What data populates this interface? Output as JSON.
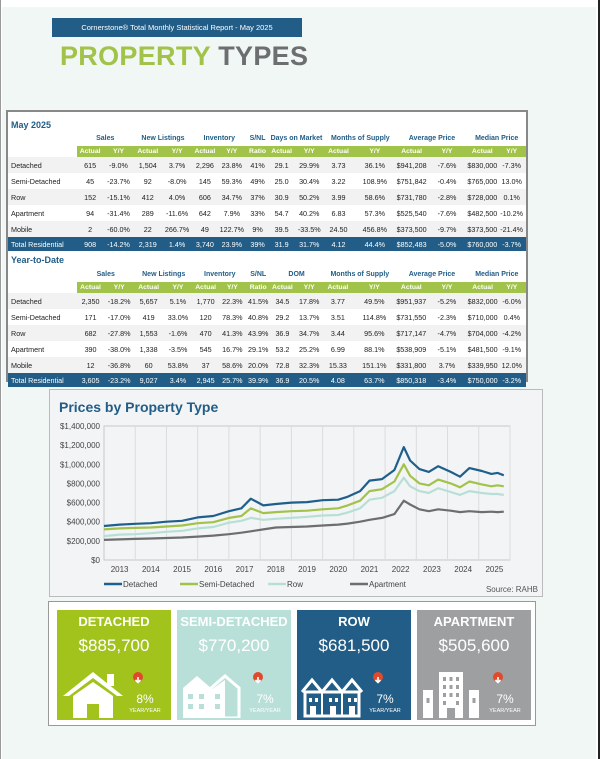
{
  "header": {
    "banner": "Cornerstone® Total Monthly Statistical Report - May 2025",
    "title_part1": "PROPERTY",
    "title_part2": "TYPES"
  },
  "tables": {
    "group_headers": [
      "Sales",
      "New Listings",
      "Inventory",
      "S/NL",
      "Months of Supply",
      "Average Price",
      "Median Price"
    ],
    "sub_headers": [
      "Actual",
      "Y/Y",
      "Actual",
      "Y/Y",
      "Actual",
      "Y/Y",
      "Ratio",
      "Actual",
      "Y/Y",
      "Actual",
      "Y/Y",
      "Actual",
      "Y/Y",
      "Actual",
      "Y/Y"
    ],
    "monthly": {
      "title": "May 2025",
      "dom_header": "Days on Market",
      "rows": [
        {
          "label": "Detached",
          "values": [
            "615",
            "-9.0%",
            "1,504",
            "3.7%",
            "2,296",
            "23.8%",
            "41%",
            "29.1",
            "29.9%",
            "3.73",
            "36.1%",
            "$941,208",
            "-7.6%",
            "$830,000",
            "-7.3%"
          ]
        },
        {
          "label": "Semi-Detached",
          "values": [
            "45",
            "-23.7%",
            "92",
            "-8.0%",
            "145",
            "59.3%",
            "49%",
            "25.0",
            "30.4%",
            "3.22",
            "108.9%",
            "$751,842",
            "-0.4%",
            "$765,000",
            "13.0%"
          ]
        },
        {
          "label": "Row",
          "values": [
            "152",
            "-15.1%",
            "412",
            "4.0%",
            "606",
            "34.7%",
            "37%",
            "30.9",
            "50.2%",
            "3.99",
            "58.6%",
            "$731,780",
            "-2.8%",
            "$728,000",
            "0.1%"
          ]
        },
        {
          "label": "Apartment",
          "values": [
            "94",
            "-31.4%",
            "289",
            "-11.6%",
            "642",
            "7.9%",
            "33%",
            "54.7",
            "40.2%",
            "6.83",
            "57.3%",
            "$525,540",
            "-7.6%",
            "$482,500",
            "-10.2%"
          ]
        },
        {
          "label": "Mobile",
          "values": [
            "2",
            "-60.0%",
            "22",
            "266.7%",
            "49",
            "122.7%",
            "9%",
            "39.5",
            "-33.5%",
            "24.50",
            "456.8%",
            "$373,500",
            "-9.7%",
            "$373,500",
            "-21.4%"
          ]
        }
      ],
      "total": {
        "label": "Total Residential",
        "values": [
          "908",
          "-14.2%",
          "2,319",
          "1.4%",
          "3,740",
          "23.9%",
          "39%",
          "31.9",
          "31.7%",
          "4.12",
          "44.4%",
          "$852,483",
          "-5.0%",
          "$760,000",
          "-3.7%"
        ]
      }
    },
    "ytd": {
      "title": "Year-to-Date",
      "dom_header": "DOM",
      "rows": [
        {
          "label": "Detached",
          "values": [
            "2,350",
            "-18.2%",
            "5,657",
            "5.1%",
            "1,770",
            "22.3%",
            "41.5%",
            "34.5",
            "17.8%",
            "3.77",
            "49.5%",
            "$951,937",
            "-5.2%",
            "$832,000",
            "-6.0%"
          ]
        },
        {
          "label": "Semi-Detached",
          "values": [
            "171",
            "-17.0%",
            "419",
            "33.0%",
            "120",
            "78.3%",
            "40.8%",
            "29.2",
            "13.7%",
            "3.51",
            "114.8%",
            "$731,550",
            "-2.3%",
            "$710,000",
            "0.4%"
          ]
        },
        {
          "label": "Row",
          "values": [
            "682",
            "-27.8%",
            "1,553",
            "-1.6%",
            "470",
            "41.3%",
            "43.9%",
            "36.9",
            "34.7%",
            "3.44",
            "95.6%",
            "$717,147",
            "-4.7%",
            "$704,000",
            "-4.2%"
          ]
        },
        {
          "label": "Apartment",
          "values": [
            "390",
            "-38.0%",
            "1,338",
            "-3.5%",
            "545",
            "16.7%",
            "29.1%",
            "53.2",
            "25.2%",
            "6.99",
            "88.1%",
            "$538,909",
            "-5.1%",
            "$481,500",
            "-9.1%"
          ]
        },
        {
          "label": "Mobile",
          "values": [
            "12",
            "-36.8%",
            "60",
            "53.8%",
            "37",
            "58.6%",
            "20.0%",
            "72.8",
            "32.3%",
            "15.33",
            "151.1%",
            "$331,800",
            "3.7%",
            "$339,950",
            "12.0%"
          ]
        }
      ],
      "total": {
        "label": "Total Residential",
        "values": [
          "3,605",
          "-23.2%",
          "9,027",
          "3.4%",
          "2,945",
          "25.7%",
          "39.9%",
          "36.9",
          "20.5%",
          "4.08",
          "63.7%",
          "$850,318",
          "-3.4%",
          "$750,000",
          "-3.2%"
        ]
      }
    }
  },
  "chart_data": {
    "type": "line",
    "title": "Prices by Property Type",
    "source": "Source: RAHB",
    "xlabel": "",
    "ylabel": "",
    "ylim": [
      0,
      1400000
    ],
    "yticks": [
      0,
      200000,
      400000,
      600000,
      800000,
      1000000,
      1200000,
      1400000
    ],
    "ytick_labels": [
      "$0",
      "$200,000",
      "$400,000",
      "$600,000",
      "$800,000",
      "$1,000,000",
      "$1,200,000",
      "$1,400,000"
    ],
    "xtick_labels": [
      "2013",
      "2014",
      "2015",
      "2016",
      "2017",
      "2018",
      "2019",
      "2020",
      "2021",
      "2022",
      "2023",
      "2024",
      "2025"
    ],
    "xlim": [
      2012.5,
      2025.5
    ],
    "grid": true,
    "legend": "bottom",
    "x": [
      2012.5,
      2013.0,
      2013.5,
      2014.0,
      2014.5,
      2015.0,
      2015.5,
      2016.0,
      2016.5,
      2016.9,
      2017.2,
      2017.6,
      2018.0,
      2018.5,
      2019.0,
      2019.5,
      2020.0,
      2020.3,
      2020.7,
      2021.0,
      2021.4,
      2021.8,
      2022.1,
      2022.3,
      2022.6,
      2022.9,
      2023.2,
      2023.6,
      2023.9,
      2024.2,
      2024.6,
      2024.9,
      2025.1,
      2025.3
    ],
    "series": [
      {
        "name": "Detached",
        "color": "#1f5f8b",
        "values": [
          355000,
          370000,
          378000,
          385000,
          400000,
          410000,
          445000,
          460000,
          510000,
          540000,
          640000,
          570000,
          585000,
          600000,
          605000,
          625000,
          630000,
          660000,
          720000,
          830000,
          845000,
          940000,
          1180000,
          1040000,
          950000,
          920000,
          980000,
          920000,
          870000,
          960000,
          930000,
          900000,
          910000,
          885000
        ]
      },
      {
        "name": "Semi-Detached",
        "color": "#a2c349",
        "values": [
          320000,
          330000,
          335000,
          340000,
          350000,
          360000,
          385000,
          395000,
          440000,
          460000,
          540000,
          490000,
          500000,
          510000,
          515000,
          530000,
          540000,
          570000,
          620000,
          720000,
          740000,
          820000,
          1000000,
          880000,
          800000,
          780000,
          840000,
          800000,
          760000,
          820000,
          790000,
          770000,
          780000,
          770000
        ]
      },
      {
        "name": "Row",
        "color": "#b8dfd6",
        "values": [
          250000,
          265000,
          270000,
          280000,
          295000,
          305000,
          330000,
          345000,
          390000,
          410000,
          440000,
          420000,
          430000,
          440000,
          450000,
          465000,
          470000,
          495000,
          540000,
          630000,
          650000,
          720000,
          860000,
          770000,
          720000,
          700000,
          750000,
          710000,
          680000,
          720000,
          700000,
          690000,
          690000,
          680000
        ]
      },
      {
        "name": "Apartment",
        "color": "#6d6e70",
        "values": [
          210000,
          215000,
          220000,
          225000,
          230000,
          235000,
          245000,
          255000,
          270000,
          285000,
          300000,
          320000,
          340000,
          345000,
          350000,
          360000,
          370000,
          380000,
          400000,
          420000,
          440000,
          480000,
          620000,
          580000,
          530000,
          510000,
          530000,
          515000,
          500000,
          510000,
          500000,
          505000,
          500000,
          505000
        ]
      }
    ]
  },
  "cards": [
    {
      "title": "DETACHED",
      "price": "$885,700",
      "change": "8%",
      "period": "YEAR/YEAR",
      "direction": "down",
      "icon": "house-icon",
      "color": "#a2c31c"
    },
    {
      "title": "SEMI-DETACHED",
      "price": "$770,200",
      "change": "7%",
      "period": "YEAR/YEAR",
      "direction": "down",
      "icon": "semi-detached-icon",
      "color": "#b9e0d8"
    },
    {
      "title": "ROW",
      "price": "$681,500",
      "change": "7%",
      "period": "YEAR/YEAR",
      "direction": "down",
      "icon": "row-houses-icon",
      "color": "#215d86"
    },
    {
      "title": "APARTMENT",
      "price": "$505,600",
      "change": "7%",
      "period": "YEAR/YEAR",
      "direction": "down",
      "icon": "apartment-building-icon",
      "color": "#9d9fa1"
    }
  ],
  "colors": {
    "brand_blue": "#215d86",
    "brand_green": "#a2c349",
    "brand_grey": "#6d6e70",
    "down_arrow": "#e04a2b"
  }
}
